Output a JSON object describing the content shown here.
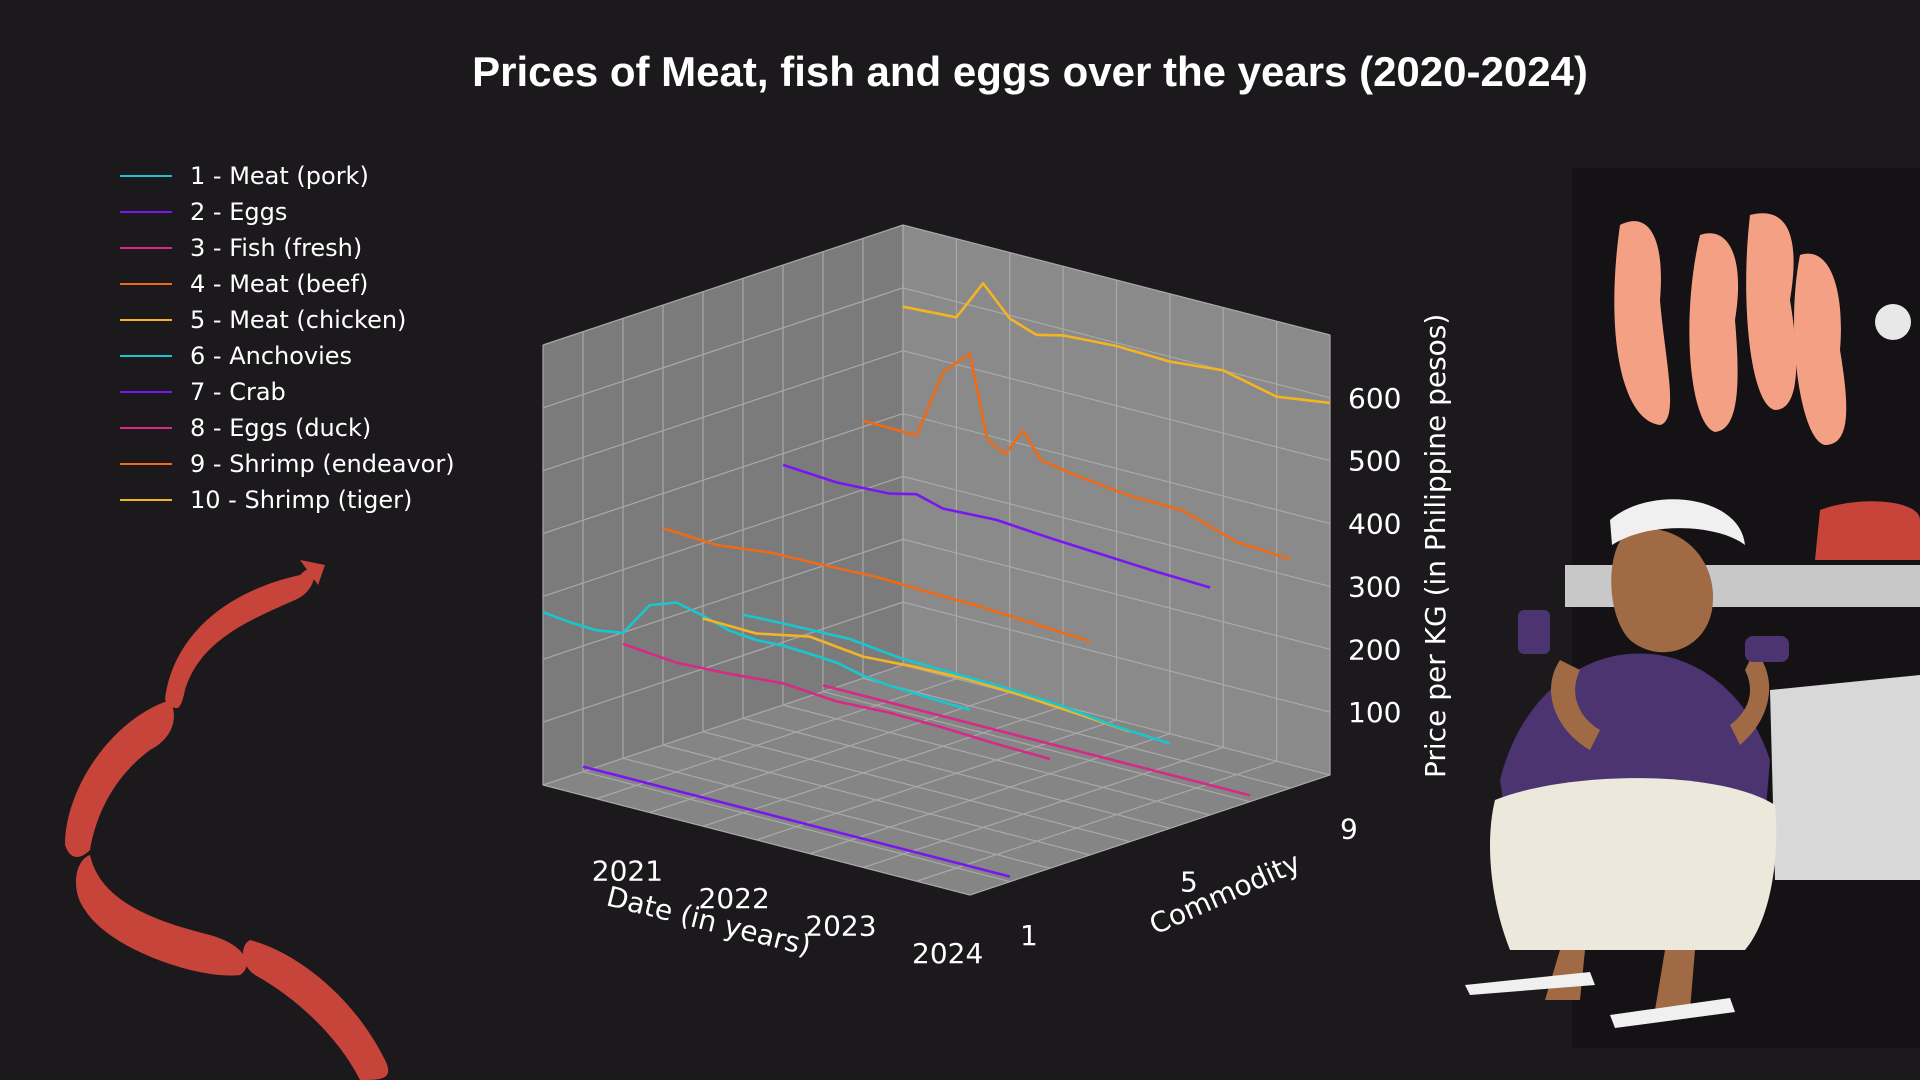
{
  "chart_data": {
    "type": "line",
    "title": "Prices of Meat, fish and eggs over the years (2020-2024)",
    "xlabel": "Date (in years)",
    "ylabel": "Commodity",
    "zlabel": "Price per KG (in Philippine pesos)",
    "x_ticks": [
      "2021",
      "2022",
      "2023",
      "2024"
    ],
    "y_ticks": [
      "1",
      "5",
      "9"
    ],
    "z_ticks": [
      "100",
      "200",
      "300",
      "400",
      "500",
      "600"
    ],
    "xlim": [
      "2020",
      "2024"
    ],
    "zlim": [
      0,
      700
    ],
    "legend_position": "top-left",
    "series": [
      {
        "name": "1 - Meat (pork)",
        "commodity": 1,
        "color": "#19c6d0",
        "dates": [
          "2020-01",
          "2020-04",
          "2020-07",
          "2020-10",
          "2021-01",
          "2021-04",
          "2021-07",
          "2021-10",
          "2022-01",
          "2022-04",
          "2022-07",
          "2022-10",
          "2023-01",
          "2023-04",
          "2023-07",
          "2023-10",
          "2024-01"
        ],
        "values": [
          275,
          270,
          268,
          275,
          330,
          345,
          335,
          322,
          318,
          320,
          318,
          315,
          305,
          300,
          298,
          296,
          295
        ]
      },
      {
        "name": "2 - Eggs",
        "commodity": 2,
        "color": "#7a17ef",
        "dates": [
          "2020-01",
          "2021-01",
          "2022-01",
          "2023-01",
          "2024-01"
        ],
        "values": [
          8,
          8,
          8,
          8,
          8
        ]
      },
      {
        "name": "3 - Fish (fresh)",
        "commodity": 3,
        "color": "#d52b86",
        "dates": [
          "2020-01",
          "2020-07",
          "2021-01",
          "2021-07",
          "2022-01",
          "2022-07",
          "2023-01",
          "2023-07",
          "2024-01"
        ],
        "values": [
          182,
          174,
          178,
          185,
          178,
          182,
          180,
          176,
          174
        ]
      },
      {
        "name": "4 - Meat (beef)",
        "commodity": 4,
        "color": "#ee6a17",
        "dates": [
          "2020-01",
          "2020-07",
          "2021-01",
          "2021-07",
          "2022-01",
          "2022-07",
          "2023-01",
          "2023-07",
          "2024-01"
        ],
        "values": [
          345,
          340,
          350,
          352,
          355,
          352,
          350,
          345,
          340
        ]
      },
      {
        "name": "5 - Meat (chicken)",
        "commodity": 5,
        "color": "#f2b424",
        "dates": [
          "2020-01",
          "2020-07",
          "2021-01",
          "2021-07",
          "2022-01",
          "2022-07",
          "2023-01",
          "2023-07",
          "2024-01"
        ],
        "values": [
          180,
          178,
          195,
          185,
          190,
          192,
          188,
          182,
          175
        ]
      },
      {
        "name": "6 - Anchovies",
        "commodity": 6,
        "color": "#19c6d0",
        "dates": [
          "2020-01",
          "2020-07",
          "2021-01",
          "2021-07",
          "2022-01",
          "2022-07",
          "2023-01",
          "2023-07",
          "2024-01"
        ],
        "values": [
          165,
          168,
          170,
          160,
          158,
          156,
          150,
          140,
          135
        ]
      },
      {
        "name": "7 - Crab",
        "commodity": 7,
        "color": "#7a17ef",
        "dates": [
          "2020-01",
          "2020-07",
          "2021-01",
          "2021-04",
          "2021-07",
          "2022-01",
          "2022-07",
          "2023-01",
          "2023-07",
          "2024-01"
        ],
        "values": [
          382,
          376,
          380,
          390,
          378,
          382,
          375,
          370,
          365,
          362
        ]
      },
      {
        "name": "8 - Eggs (duck)",
        "commodity": 8,
        "color": "#d52b86",
        "dates": [
          "2020-01",
          "2021-01",
          "2022-01",
          "2023-01",
          "2024-01"
        ],
        "values": [
          10,
          10,
          10,
          10,
          10
        ]
      },
      {
        "name": "9 - Shrimp (endeavor)",
        "commodity": 9,
        "color": "#ee6a17",
        "dates": [
          "2020-01",
          "2020-07",
          "2020-10",
          "2021-01",
          "2021-03",
          "2021-05",
          "2021-07",
          "2021-09",
          "2022-01",
          "2022-07",
          "2023-01",
          "2023-07",
          "2024-01"
        ],
        "values": [
          410,
          408,
          520,
          560,
          430,
          415,
          460,
          420,
          410,
          400,
          398,
          370,
          365
        ]
      },
      {
        "name": "10 - Shrimp (tiger)",
        "commodity": 10,
        "color": "#f2b424",
        "dates": [
          "2020-01",
          "2020-07",
          "2020-10",
          "2021-01",
          "2021-04",
          "2021-07",
          "2022-01",
          "2022-07",
          "2023-01",
          "2023-07",
          "2024-01"
        ],
        "values": [
          570,
          575,
          640,
          595,
          580,
          590,
          595,
          592,
          600,
          580,
          592
        ]
      }
    ]
  },
  "illustration": {
    "sausage_color": "#c7443a",
    "vendor_shirt_color": "#4b3470",
    "meat_color": "#f4a084"
  }
}
